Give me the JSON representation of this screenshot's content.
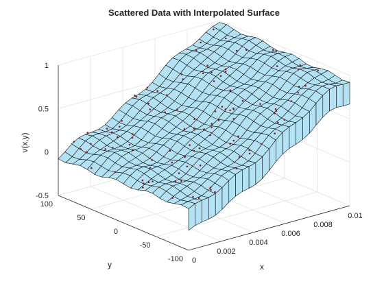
{
  "chart_data": {
    "type": "surface",
    "title": "Scattered Data with Interpolated Surface",
    "xlabel": "x",
    "ylabel": "y",
    "zlabel": "v(x,y)",
    "xlim": [
      0,
      0.01
    ],
    "ylim": [
      -100,
      100
    ],
    "zlim": [
      -0.5,
      1
    ],
    "x_ticks": [
      "0",
      "0.002",
      "0.004",
      "0.006",
      "0.008",
      "0.01"
    ],
    "y_ticks": [
      "-100",
      "-50",
      "0",
      "50",
      "100"
    ],
    "z_ticks": [
      "-0.5",
      "0",
      "0.5",
      "1"
    ],
    "grid": true,
    "surface_model": {
      "description_values": "v(x) approx: 0 at x=0, ~0.95 at x=0.01, near-uniform in y, with sharp drop at x=0 edge and x=0.01 edge",
      "x": [
        0,
        0.001,
        0.002,
        0.003,
        0.004,
        0.005,
        0.006,
        0.007,
        0.008,
        0.009,
        0.01
      ],
      "v_at_x": [
        -0.05,
        0.05,
        0.12,
        0.2,
        0.3,
        0.42,
        0.55,
        0.68,
        0.8,
        0.9,
        0.95
      ]
    },
    "scatter_color": "#8b1a1a",
    "surface_color": "#b3e2f5",
    "edge_color": "#000000"
  }
}
